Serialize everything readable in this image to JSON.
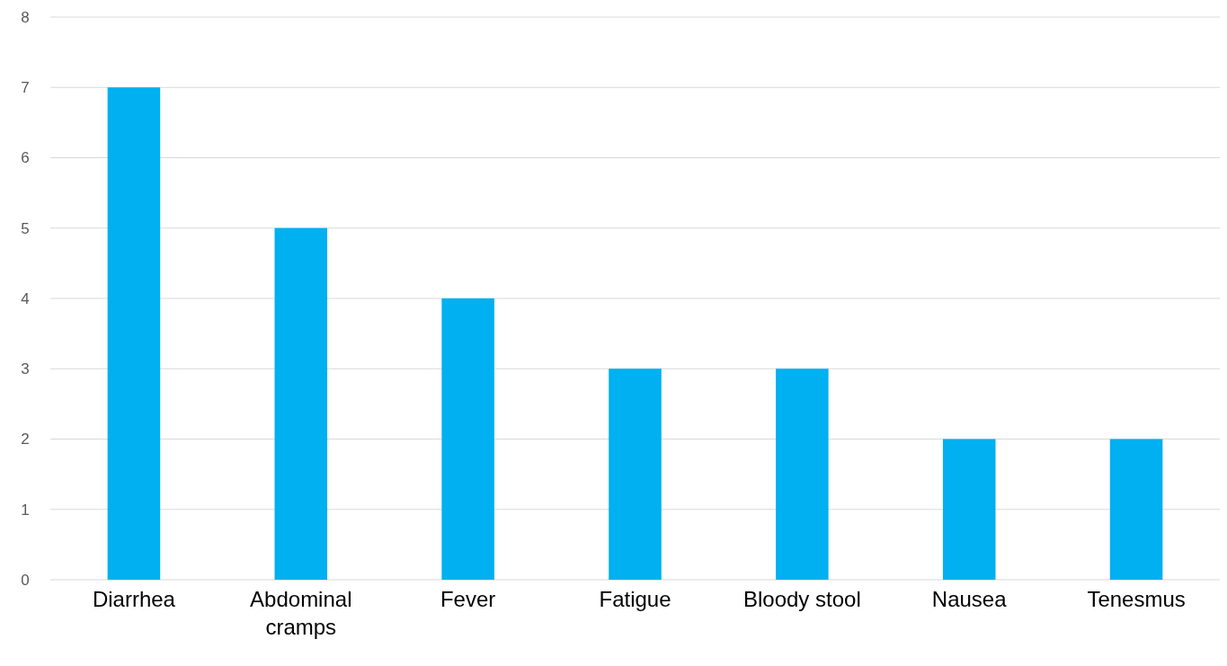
{
  "chart_data": {
    "type": "bar",
    "categories": [
      "Diarrhea",
      "Abdominal cramps",
      "Fever",
      "Fatigue",
      "Bloody stool",
      "Nausea",
      "Tenesmus"
    ],
    "values": [
      7,
      5,
      4,
      3,
      3,
      2,
      2
    ],
    "color": "#00b0f0",
    "ylim": [
      0,
      8
    ],
    "yticks": [
      0,
      1,
      2,
      3,
      4,
      5,
      6,
      7,
      8
    ],
    "grid": "y"
  }
}
